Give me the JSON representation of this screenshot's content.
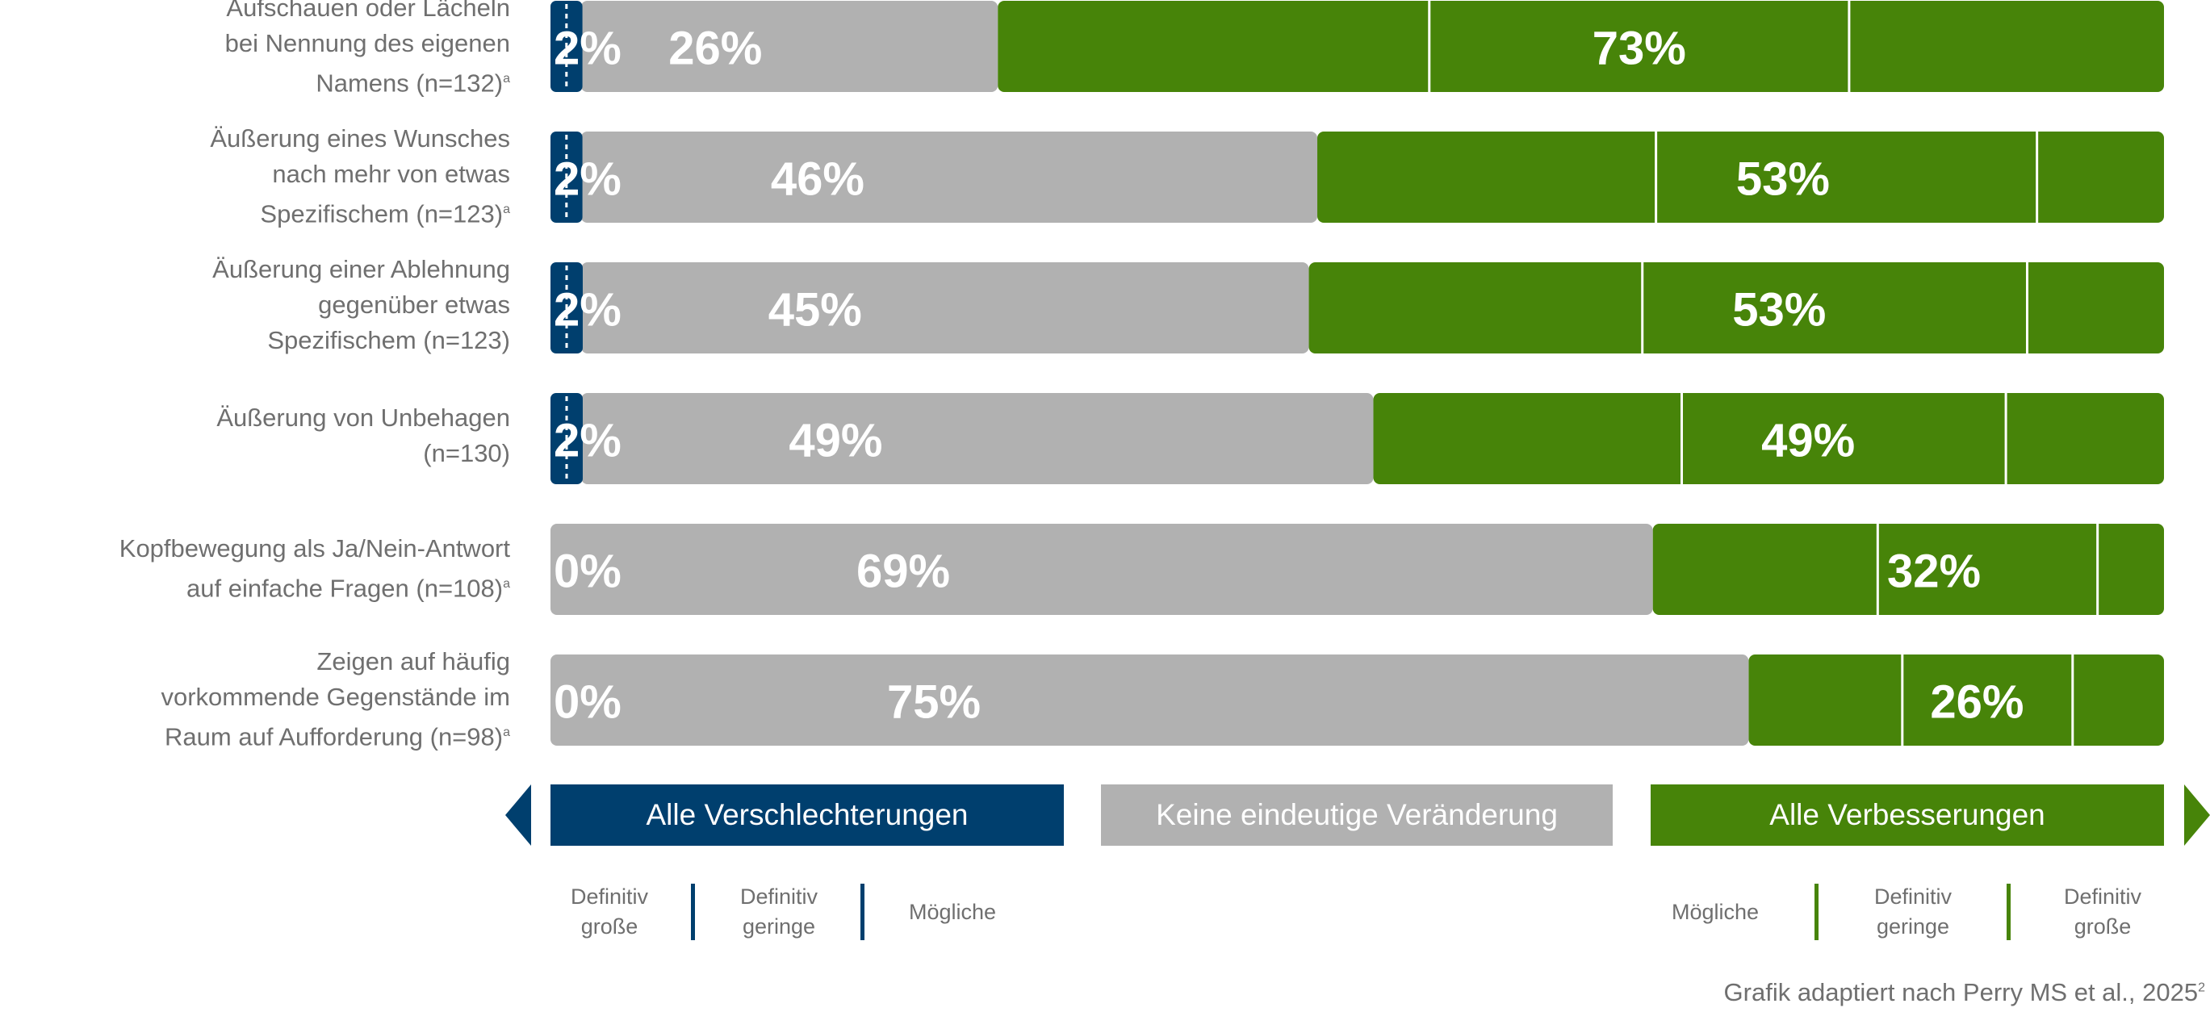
{
  "colors": {
    "worse": "#003f6e",
    "neutral": "#b1b1b1",
    "better": "#478409",
    "text": "#6f6f6f"
  },
  "chart_data": {
    "type": "bar",
    "orientation": "horizontal-stacked-100",
    "categories": [
      {
        "label": "Aufschauen oder Lächeln\nbei Nennung des eigenen\nNamens (n=132)",
        "marker": "a"
      },
      {
        "label": "Äußerung eines Wunsches\nnach mehr von etwas\nSpezifischem (n=123)",
        "marker": "a"
      },
      {
        "label": "Äußerung einer Ablehnung\ngegenüber etwas\nSpezifischem (n=123)",
        "marker": ""
      },
      {
        "label": "Äußerung von Unbehagen\n(n=130)",
        "marker": ""
      },
      {
        "label": "Kopfbewegung als Ja/Nein-Antwort\nauf einfache Fragen (n=108)",
        "marker": "a"
      },
      {
        "label": "Zeigen auf häufig\nvorkommende Gegenstände im\nRaum auf Aufforderung (n=98)",
        "marker": "a"
      }
    ],
    "series": [
      {
        "name": "Alle Verschlechterungen",
        "values": [
          2,
          2,
          2,
          2,
          0,
          0
        ],
        "labels": [
          "2%",
          "2%",
          "2%",
          "2%",
          "0%",
          "0%"
        ]
      },
      {
        "name": "Keine eindeutige Veränderung",
        "values": [
          26,
          46,
          45,
          49,
          69,
          75
        ],
        "labels": [
          "26%",
          "46%",
          "45%",
          "49%",
          "69%",
          "75%"
        ]
      },
      {
        "name": "Alle Verbesserungen",
        "values": [
          73,
          53,
          53,
          49,
          32,
          26
        ],
        "labels": [
          "73%",
          "53%",
          "53%",
          "49%",
          "32%",
          "26%"
        ],
        "sub_splits": [
          [
            37,
            73
          ],
          [
            40,
            85
          ],
          [
            39,
            84
          ],
          [
            39,
            80
          ],
          [
            44,
            87
          ],
          [
            37,
            78
          ]
        ]
      }
    ],
    "legend": {
      "worse": "Alle Verschlechterungen",
      "neutral": "Keine eindeutige Veränderung",
      "better": "Alle Verbesserungen"
    },
    "sub_legend": {
      "worse": [
        "Definitiv\ngroße",
        "Definitiv\ngeringe",
        "Mögliche"
      ],
      "better": [
        "Mögliche",
        "Definitiv\ngeringe",
        "Definitiv\ngroße"
      ]
    },
    "source": "Grafik adaptiert nach Perry MS et al., 2025",
    "source_marker": "2"
  }
}
